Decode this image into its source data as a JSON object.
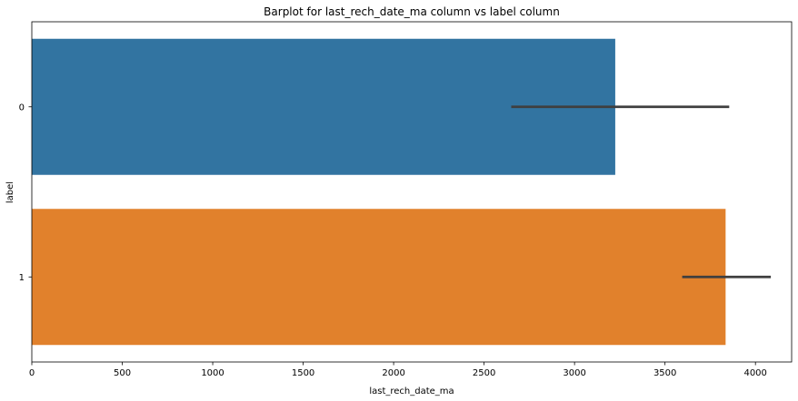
{
  "chart_data": {
    "type": "bar",
    "orientation": "horizontal",
    "title": "Barplot for last_rech_date_ma column vs label column",
    "xlabel": "last_rech_date_ma",
    "ylabel": "label",
    "categories": [
      "0",
      "1"
    ],
    "values": [
      3225,
      3835
    ],
    "error_bars": [
      {
        "low": 2650,
        "high": 3855
      },
      {
        "low": 3595,
        "high": 4085
      }
    ],
    "colors": [
      "#3274a1",
      "#e1812c"
    ],
    "error_color": "#3f3f3f",
    "xlim": [
      0,
      4200
    ],
    "xticks": [
      0,
      500,
      1000,
      1500,
      2000,
      2500,
      3000,
      3500,
      4000
    ],
    "xtick_labels": [
      "0",
      "500",
      "1000",
      "1500",
      "2000",
      "2500",
      "3000",
      "3500",
      "4000"
    ],
    "grid": false
  }
}
